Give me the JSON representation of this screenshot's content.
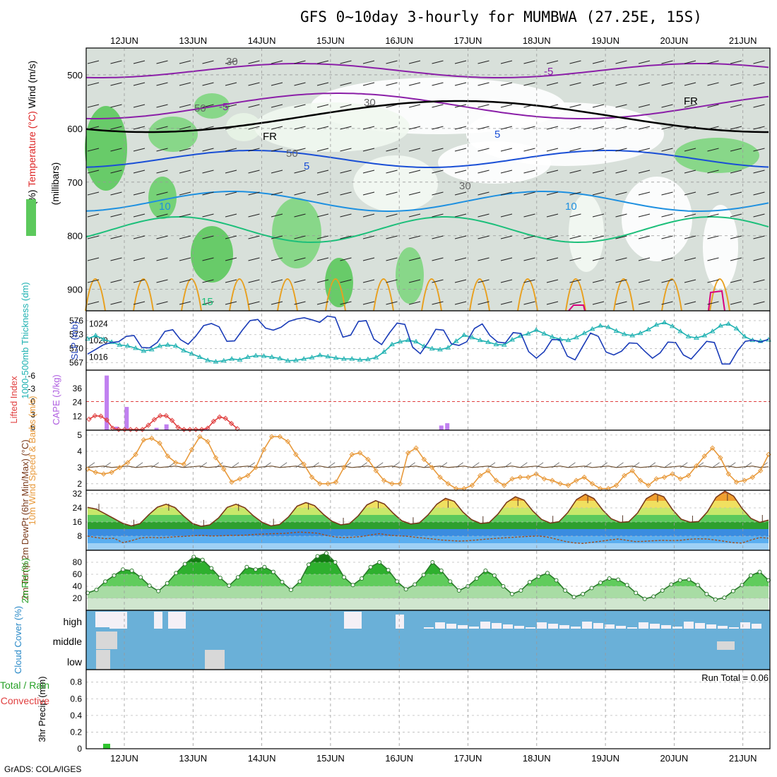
{
  "chart_data": {
    "type": "line",
    "title": "GFS 0~10day 3-hourly for MUMBWA (27.25E, 15S)",
    "credit": "GrADS: COLA/IGES",
    "dates": [
      "12JUN",
      "13JUN",
      "14JUN",
      "15JUN",
      "16JUN",
      "17JUN",
      "18JUN",
      "19JUN",
      "20JUN",
      "21JUN"
    ],
    "panels": {
      "upper_air": {
        "ylabel_parts": [
          "RH (%)",
          "Temperature (°C)",
          "Wind (m/s)"
        ],
        "axis_label": "(millibars)",
        "yticks": [
          500,
          600,
          700,
          800,
          900
        ],
        "ylim": [
          940,
          450
        ],
        "contour_labels": [
          "-5",
          "-5",
          "FR",
          "FR",
          "5",
          "5",
          "10",
          "10",
          "10",
          "30",
          "30",
          "30",
          "50",
          "50",
          "15"
        ],
        "rh_legend": "RH (%)"
      },
      "thickness_slp": {
        "ylabel_left": "1000-500mb Thickness (dm)",
        "ylabel_right": "SLP (mb)",
        "left_ticks": [
          "576",
          "573",
          "570",
          "567"
        ],
        "right_ticks": [
          "1024",
          "1020",
          "1016"
        ],
        "thickness_dm": [
          572.1,
          572.8,
          572,
          571.4,
          570.8,
          570.6,
          570.1,
          569.5,
          569.8,
          570.6,
          570.8,
          570.6,
          569.6,
          568.9,
          568.2,
          567.5,
          567.2,
          567.4,
          567.8,
          567.6,
          568.2,
          568.5,
          568.4,
          568.2,
          567.9,
          567.4,
          567.5,
          567.8,
          568.1,
          568.6,
          568.3,
          568,
          567.8,
          567.8,
          567.6,
          567.7,
          568.1,
          569.3,
          570.9,
          571.5,
          571.8,
          571.5,
          570.5,
          570,
          569.8,
          570.2,
          571.6,
          572.9,
          572.4,
          571.8,
          571.4,
          570.9,
          570.8,
          571.9,
          572.7,
          573.2,
          574,
          573.2,
          572.5,
          572,
          571.8,
          572.4,
          573.3,
          574.2,
          574.9,
          574.6,
          573.8,
          573.1,
          572.8,
          573.3,
          574.1,
          575.1,
          575.6,
          574.8,
          573.7,
          572.6,
          572.3,
          572.8,
          573.7,
          574.9,
          575.3,
          574.3,
          572.6,
          571.8,
          571.6,
          571.9
        ],
        "slp_mb": [
          1016.7,
          1017.8,
          1018.9,
          1019.5,
          1019.7,
          1021,
          1021.2,
          1018.3,
          1018.2,
          1019.5,
          1022.2,
          1022.6,
          1020.2,
          1019.1,
          1021.1,
          1023.6,
          1024.1,
          1023.3,
          1019.8,
          1019.9,
          1022.5,
          1024.8,
          1025.1,
          1023,
          1022.5,
          1023.2,
          1024.6,
          1025.2,
          1025.5,
          1025,
          1024.4,
          1025.9,
          1025.6,
          1020.8,
          1021.3,
          1024.6,
          1024.8,
          1020.3,
          1019,
          1021.8,
          1024.2,
          1023.9,
          1018.4,
          1016.8,
          1019.5,
          1022.7,
          1022.5,
          1019.2,
          1018.8,
          1019.7,
          1022.9,
          1024,
          1021.2,
          1019.6,
          1019.4,
          1021.9,
          1021.7,
          1017.3,
          1015.7,
          1017.3,
          1020.2,
          1020.2,
          1016.2,
          1015.3,
          1018.6,
          1021.8,
          1021,
          1017.2,
          1016.5,
          1017.4,
          1019.4,
          1019.3,
          1017.4,
          1015.7,
          1017,
          1019.6,
          1019.5,
          1016.5,
          1015.5,
          1017.6,
          1019.8,
          1019.5,
          1014.3,
          1014.3,
          1017.5,
          1019.8,
          1020.1,
          1019.6,
          1020.3
        ]
      },
      "cape_li": {
        "ylabel_left": "Lifted Index",
        "ylabel_right": "CAPE (J/kg)",
        "li_ticks": [
          "-6",
          "-3",
          "0",
          "3",
          "6"
        ],
        "cape_ticks": [
          "36",
          "24",
          "12"
        ],
        "cape_bars": [
          [
            0.5,
            47
          ],
          [
            1,
            3
          ],
          [
            1.5,
            20
          ],
          [
            3,
            2
          ],
          [
            3.5,
            5
          ],
          [
            5.5,
            1
          ],
          [
            17.3,
            4
          ],
          [
            17.6,
            6
          ]
        ],
        "lifted_index": [
          4.1,
          3.3,
          3.4,
          4.3,
          6.2,
          7.6,
          7.5,
          7.3,
          7.1,
          6.5,
          5.5,
          4.2,
          3.3,
          3.3,
          4.4,
          6,
          7.5,
          8.4,
          8.3,
          7.4,
          6.2,
          4.6,
          3.6,
          3.9,
          5.1,
          6.3
        ]
      },
      "wind10m": {
        "ylabel": "10m Wind Speed & Barbs (m/s)",
        "yticks": [
          "5",
          "4",
          "3",
          "2"
        ],
        "ylim": [
          1.6,
          5.3
        ],
        "speed": [
          2.9,
          2.7,
          2.6,
          2.7,
          3,
          3.3,
          3.8,
          4.7,
          4.8,
          4.5,
          3.7,
          3.3,
          3.2,
          4.1,
          4.9,
          4.6,
          3.6,
          2.9,
          2.1,
          2.3,
          2.5,
          3,
          4.1,
          4.9,
          4.9,
          4.6,
          3.8,
          3.2,
          2.4,
          2,
          2,
          2.1,
          3,
          3.8,
          3.9,
          3.5,
          2.8,
          2.2,
          2,
          2,
          3.9,
          4.2,
          3.5,
          3,
          2.4,
          2,
          1.7,
          1.7,
          1.9,
          2.5,
          2.8,
          2.2,
          1.9,
          2.3,
          2.4,
          2.4,
          2.6,
          2.3,
          2.2,
          2,
          1.9,
          2.2,
          2.4,
          2,
          1.7,
          1.7,
          1.9,
          2.5,
          2.8,
          2.2,
          1.9,
          2.3,
          2.4,
          2.6,
          2.3,
          2.5,
          3.1,
          3.7,
          4.2,
          3.6,
          2.6,
          2.1,
          2.2,
          2.4,
          2.8,
          3.8
        ]
      },
      "temp2m": {
        "ylabel": "2m Temp 2m DewPt (6hr Min/Max) (°C)",
        "yticks": [
          "32",
          "24",
          "16",
          "8"
        ],
        "ylim": [
          0,
          34
        ],
        "temperature": [
          24.3,
          23.3,
          20.7,
          18,
          15.3,
          13.8,
          15.1,
          20.1,
          24.4,
          26.1,
          24.2,
          19.4,
          15.2,
          13.6,
          14.4,
          18.3,
          24.3,
          26.1,
          24.1,
          19.5,
          15.8,
          13.8,
          14.6,
          18.8,
          25,
          27,
          25.3,
          20.4,
          16.4,
          14.4,
          15.1,
          19.5,
          25.7,
          28.1,
          26.2,
          21,
          16.7,
          14.9,
          15.5,
          20,
          26.1,
          29.4,
          27.7,
          21.6,
          17.3,
          15.2,
          15.7,
          20.5,
          27.1,
          30.3,
          28.4,
          22.2,
          17.5,
          15.4,
          16.2,
          21.3,
          28.7,
          31.7,
          29.3,
          22.8,
          17.8,
          15.8,
          16.2,
          21.1,
          29.2,
          32.1,
          30.3,
          23,
          17.6,
          15.9,
          16.3,
          21.8,
          30,
          33.5,
          30.7,
          23.5,
          18,
          15.8,
          17.1
        ],
        "dewpoint": [
          8,
          7.2,
          6.6,
          6.8,
          4.3,
          5.5,
          7,
          7.3,
          7.1,
          7.3,
          7.7,
          7.9,
          8.3,
          8.4,
          8.1,
          8.2,
          8.4,
          8.5,
          8.6,
          9,
          9.2,
          9.4,
          9.5,
          9.9,
          10.3,
          10,
          9.7,
          8.5,
          7.5,
          7.2,
          7.4,
          7.8,
          8.7,
          9.4,
          8.6,
          8.2,
          8,
          7.4,
          6.9,
          6.4,
          5.8,
          5.5,
          5.2,
          5.4,
          5.8,
          6.3,
          6.7,
          7,
          7.3,
          7.6,
          7.9,
          8.1,
          7.5,
          6.3,
          5,
          4.2,
          3.9,
          4.5,
          5.1,
          5.8,
          6.4,
          5.6,
          4.9,
          5.1,
          5.4,
          5.6,
          5.5,
          5.6,
          6.2,
          6.5,
          6.4,
          5.8,
          5.1,
          4.3,
          4.1,
          5.8,
          7.2,
          6.9
        ]
      },
      "rh2m": {
        "ylabel": "2m RH (%)",
        "yticks": [
          "80",
          "60",
          "40",
          "20"
        ],
        "ylim": [
          0,
          100
        ],
        "rh": [
          29,
          34,
          48,
          58,
          68,
          66,
          55,
          41,
          32,
          45,
          62,
          77,
          89,
          84,
          70,
          54,
          41,
          55,
          72,
          68,
          72,
          64,
          47,
          34,
          48,
          76,
          90,
          95,
          80,
          55,
          42,
          53,
          72,
          80,
          67,
          48,
          35,
          43,
          59,
          80,
          66,
          48,
          33,
          40,
          53,
          66,
          58,
          40,
          27,
          33,
          47,
          56,
          62,
          50,
          33,
          22,
          27,
          37,
          46,
          53,
          51,
          42,
          29,
          19,
          23,
          33,
          43,
          50,
          51,
          42,
          27,
          18,
          21,
          32,
          42,
          58,
          64,
          50
        ]
      },
      "cloud": {
        "ylabel": "Cloud Cover (%)",
        "levels": [
          "high",
          "middle",
          "low"
        ]
      },
      "precip": {
        "ylabel": "3hr Precip (mm)",
        "legend_total": "Total / Rain",
        "legend_conv": "Convective",
        "yticks": [
          "0.8",
          "0.6",
          "0.4",
          "0.2",
          "0"
        ],
        "ylim": [
          0,
          0.95
        ],
        "run_total": "Run Total = 0.06",
        "bars": [
          [
            1,
            0.06
          ]
        ]
      }
    }
  }
}
